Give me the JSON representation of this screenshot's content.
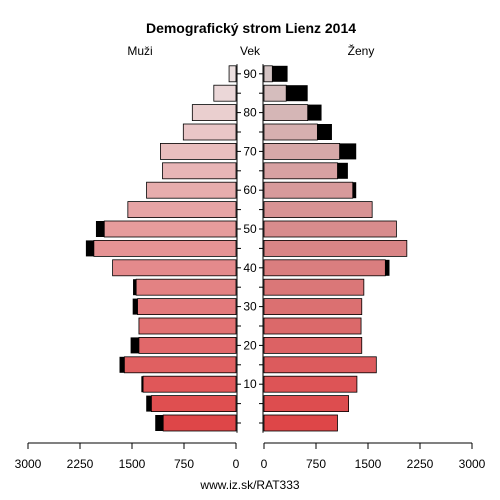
{
  "chart_data": {
    "type": "bar",
    "title": "Demografický strom Lienz 2014",
    "left_label": "Muži",
    "center_label": "Vek",
    "right_label": "Ženy",
    "footer": "www.iz.sk/RAT333",
    "x_max": 3000,
    "x_ticks": [
      3000,
      2250,
      1500,
      750,
      0
    ],
    "x_ticks_right": [
      0,
      750,
      1500,
      2250,
      3000
    ],
    "age_ticks": [
      10,
      20,
      30,
      40,
      50,
      60,
      70,
      80,
      90
    ],
    "age_groups": [
      "0-4",
      "5-9",
      "10-14",
      "15-19",
      "20-24",
      "25-29",
      "30-34",
      "35-39",
      "40-44",
      "45-49",
      "50-54",
      "55-59",
      "60-64",
      "65-69",
      "70-74",
      "75-79",
      "80-84",
      "85-89",
      "90+"
    ],
    "series": [
      {
        "name": "Muži",
        "values": [
          1050,
          1220,
          1340,
          1610,
          1400,
          1400,
          1420,
          1440,
          1780,
          2050,
          1900,
          1560,
          1290,
          1060,
          1090,
          760,
          630,
          320,
          100
        ],
        "excess": [
          115,
          75,
          25,
          70,
          120,
          0,
          70,
          45,
          0,
          115,
          120,
          0,
          0,
          0,
          0,
          0,
          0,
          0,
          0
        ]
      },
      {
        "name": "Ženy",
        "values": [
          1060,
          1220,
          1340,
          1620,
          1410,
          1400,
          1410,
          1440,
          1750,
          2060,
          1910,
          1560,
          1280,
          1060,
          1090,
          770,
          630,
          320,
          120
        ],
        "excess": [
          0,
          0,
          0,
          0,
          0,
          0,
          0,
          0,
          60,
          0,
          0,
          0,
          50,
          150,
          240,
          210,
          200,
          310,
          220
        ]
      }
    ]
  }
}
